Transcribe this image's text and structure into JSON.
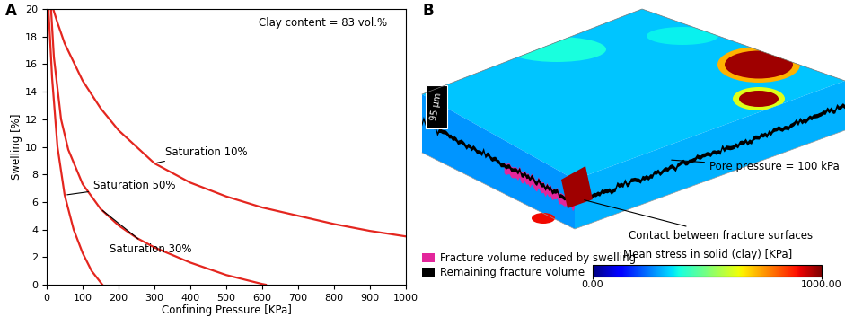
{
  "chart_data": {
    "type": "line",
    "panel": "A",
    "annotations": [
      "Clay content = 83 vol.%"
    ],
    "x_label": "Confining Pressure [KPa]",
    "y_label": "Swelling [%]",
    "xlim": [
      0,
      1000
    ],
    "xticks": [
      0,
      100,
      200,
      300,
      400,
      500,
      600,
      700,
      800,
      900,
      1000
    ],
    "ylim": [
      0,
      20
    ],
    "yticks": [
      0,
      2,
      4,
      6,
      8,
      10,
      12,
      14,
      16,
      18,
      20
    ],
    "series": [
      {
        "name": "Saturation 10%",
        "color": "#e4261f",
        "x": [
          18,
          30,
          50,
          100,
          150,
          200,
          300,
          400,
          500,
          600,
          700,
          800,
          900,
          1000
        ],
        "values": [
          20,
          19,
          17.5,
          14.8,
          12.8,
          11.2,
          8.8,
          7.4,
          6.4,
          5.6,
          5.0,
          4.4,
          3.9,
          3.5
        ]
      },
      {
        "name": "Saturation 30%",
        "color": "#e4261f",
        "x": [
          12,
          20,
          40,
          60,
          100,
          150,
          200,
          250,
          300,
          400,
          500,
          600,
          610
        ],
        "values": [
          20,
          16.5,
          12,
          9.8,
          7.3,
          5.5,
          4.3,
          3.4,
          2.7,
          1.6,
          0.7,
          0.05,
          0
        ]
      },
      {
        "name": "Saturation 50%",
        "color": "#e4261f",
        "x": [
          5,
          15,
          30,
          50,
          75,
          100,
          125,
          155
        ],
        "values": [
          20,
          15,
          10,
          6.5,
          4.0,
          2.3,
          1.0,
          0
        ]
      }
    ]
  },
  "panel_b": {
    "panel": "B",
    "scale_bar": "95 μm",
    "annotations": [
      "Pore pressure = 100 kPa",
      "Contact between fracture surfaces"
    ],
    "key_entries": [
      {
        "name": "Fracture volume reduced by swelling",
        "color": "#e3269b"
      },
      {
        "name": "Remaining fracture volume",
        "color": "#000000"
      }
    ],
    "colorbar": {
      "title": "Mean stress in solid (clay) [KPa]",
      "range": [
        0,
        1000
      ],
      "ticks": [
        {
          "value": 0,
          "label": "0.00"
        },
        {
          "value": 1000,
          "label": "1000.00"
        }
      ]
    }
  }
}
